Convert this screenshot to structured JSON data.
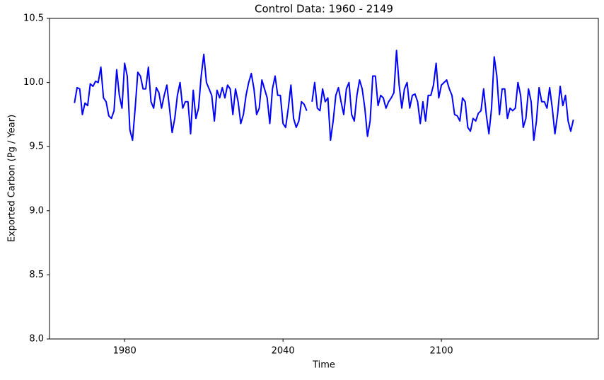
{
  "chart_data": {
    "type": "line",
    "title": "Control Data: 1960 - 2149",
    "xlabel": "Time",
    "ylabel": "Exported Carbon (Pg / Year)",
    "xlim": [
      1951.55,
      2159.45
    ],
    "ylim": [
      8.0,
      10.5
    ],
    "xticks": [
      1980,
      2040,
      2100
    ],
    "yticks": [
      {
        "value": 8.0,
        "label": "8.0"
      },
      8.5,
      {
        "value": 9.0,
        "label": "9.0"
      },
      9.5,
      {
        "value": 10.0,
        "label": "10.0"
      },
      10.5
    ],
    "x": [
      1961,
      1962,
      1963,
      1964,
      1965,
      1966,
      1967,
      1968,
      1969,
      1970,
      1971,
      1972,
      1973,
      1974,
      1975,
      1976,
      1977,
      1978,
      1979,
      1980,
      1981,
      1982,
      1983,
      1984,
      1985,
      1986,
      1987,
      1988,
      1989,
      1990,
      1991,
      1992,
      1993,
      1994,
      1995,
      1996,
      1997,
      1998,
      1999,
      2000,
      2001,
      2002,
      2003,
      2004,
      2005,
      2006,
      2007,
      2008,
      2009,
      2010,
      2011,
      2012,
      2013,
      2014,
      2015,
      2016,
      2017,
      2018,
      2019,
      2020,
      2021,
      2022,
      2023,
      2024,
      2025,
      2026,
      2027,
      2028,
      2029,
      2030,
      2031,
      2032,
      2033,
      2034,
      2035,
      2036,
      2037,
      2038,
      2039,
      2040,
      2041,
      2042,
      2043,
      2044,
      2045,
      2046,
      2047,
      2048,
      2049,
      2050,
      2051,
      2052,
      2053,
      2054,
      2055,
      2056,
      2057,
      2058,
      2059,
      2060,
      2061,
      2062,
      2063,
      2064,
      2065,
      2066,
      2067,
      2068,
      2069,
      2070,
      2071,
      2072,
      2073,
      2074,
      2075,
      2076,
      2077,
      2078,
      2079,
      2080,
      2081,
      2082,
      2083,
      2084,
      2085,
      2086,
      2087,
      2088,
      2089,
      2090,
      2091,
      2092,
      2093,
      2094,
      2095,
      2096,
      2097,
      2098,
      2099,
      2100,
      2101,
      2102,
      2103,
      2104,
      2105,
      2106,
      2107,
      2108,
      2109,
      2110,
      2111,
      2112,
      2113,
      2114,
      2115,
      2116,
      2117,
      2118,
      2119,
      2120,
      2121,
      2122,
      2123,
      2124,
      2125,
      2126,
      2127,
      2128,
      2129,
      2130,
      2131,
      2132,
      2133,
      2134,
      2135,
      2136,
      2137,
      2138,
      2139,
      2140,
      2141,
      2142,
      2143,
      2144,
      2145,
      2146,
      2147,
      2148,
      2149,
      2150
    ],
    "series": [
      {
        "name": "Exported Carbon",
        "color": "#0000ff",
        "values": [
          9.84,
          9.96,
          9.95,
          9.75,
          9.84,
          9.82,
          9.99,
          9.97,
          10.01,
          10.0,
          10.12,
          9.88,
          9.85,
          9.74,
          9.72,
          9.78,
          10.1,
          9.9,
          9.8,
          10.15,
          10.05,
          9.63,
          9.55,
          9.8,
          10.08,
          10.05,
          9.95,
          9.95,
          10.12,
          9.85,
          9.8,
          9.96,
          9.92,
          9.8,
          9.9,
          9.98,
          9.8,
          9.61,
          9.72,
          9.9,
          10.0,
          9.8,
          9.85,
          9.85,
          9.6,
          9.94,
          9.72,
          9.8,
          10.05,
          10.22,
          10.0,
          9.95,
          9.9,
          9.7,
          9.94,
          9.88,
          9.96,
          9.88,
          9.98,
          9.95,
          9.75,
          9.95,
          9.85,
          9.68,
          9.75,
          9.9,
          10.0,
          10.07,
          9.95,
          9.75,
          9.8,
          10.02,
          9.95,
          9.88,
          9.68,
          9.95,
          10.05,
          9.9,
          9.9,
          9.68,
          9.65,
          9.8,
          9.98,
          9.72,
          9.65,
          9.7,
          9.85,
          9.83,
          9.78,
          null,
          9.85,
          10.0,
          9.8,
          9.78,
          9.95,
          9.85,
          9.88,
          9.55,
          9.7,
          9.9,
          9.96,
          9.85,
          9.75,
          9.95,
          10.0,
          9.75,
          9.7,
          9.9,
          10.02,
          9.95,
          9.8,
          9.58,
          9.7,
          10.05,
          10.05,
          9.82,
          9.9,
          9.88,
          9.8,
          9.85,
          9.88,
          9.92,
          10.25,
          9.98,
          9.8,
          9.95,
          10.0,
          9.8,
          9.9,
          9.91,
          9.85,
          9.68,
          9.85,
          9.7,
          9.9,
          9.9,
          9.98,
          10.15,
          9.88,
          9.98,
          10.0,
          10.02,
          9.95,
          9.9,
          9.75,
          9.74,
          9.7,
          9.88,
          9.85,
          9.65,
          9.62,
          9.72,
          9.7,
          9.76,
          9.78,
          9.95,
          9.75,
          9.6,
          9.8,
          10.2,
          10.05,
          9.75,
          9.95,
          9.95,
          9.72,
          9.8,
          9.78,
          9.8,
          10.0,
          9.9,
          9.65,
          9.72,
          9.95,
          9.85,
          9.55,
          9.7,
          9.96,
          9.85,
          9.85,
          9.8,
          9.96,
          9.8,
          9.6,
          9.75,
          9.97,
          9.82,
          9.9,
          9.7,
          9.62,
          9.71
        ]
      }
    ]
  }
}
